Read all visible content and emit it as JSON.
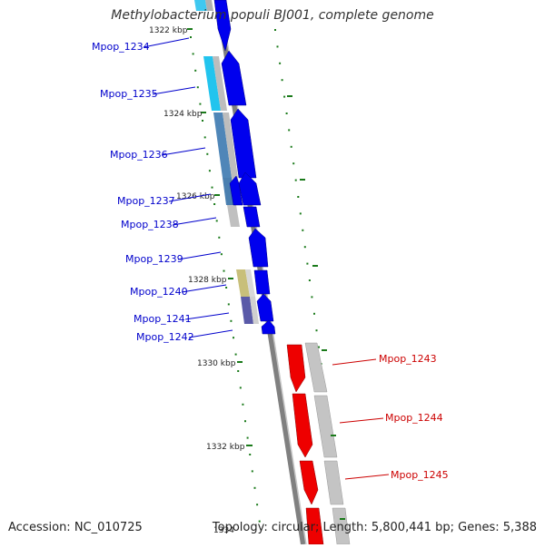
{
  "title": "Methylobacterium populi BJ001, complete genome",
  "accession": "Accession: NC_010725",
  "summary": "Topology: circular; Length: 5,800,441 bp; Genes: 5,388",
  "colors": {
    "backbone": "#808080",
    "minus_gene": "#0000ee",
    "plus_gene": "#ee0000",
    "minus_label": "#0000cc",
    "plus_label": "#cc0000",
    "tick": "#1a7a1a",
    "cds_gray": "#c0c0c0"
  },
  "ticks": [
    {
      "label": "1322 kbp"
    },
    {
      "label": "1324 kbp"
    },
    {
      "label": "1326 kbp"
    },
    {
      "label": "1328 kbp"
    },
    {
      "label": "1330 kbp"
    },
    {
      "label": "1332 kbp"
    },
    {
      "label": "1334"
    }
  ],
  "genes": [
    {
      "name": "Mpop_1234",
      "strand": "minus"
    },
    {
      "name": "Mpop_1235",
      "strand": "minus"
    },
    {
      "name": "Mpop_1236",
      "strand": "minus"
    },
    {
      "name": "Mpop_1237",
      "strand": "minus"
    },
    {
      "name": "Mpop_1238",
      "strand": "minus"
    },
    {
      "name": "Mpop_1239",
      "strand": "minus"
    },
    {
      "name": "Mpop_1240",
      "strand": "minus"
    },
    {
      "name": "Mpop_1241",
      "strand": "minus"
    },
    {
      "name": "Mpop_1242",
      "strand": "minus"
    },
    {
      "name": "Mpop_1243",
      "strand": "plus"
    },
    {
      "name": "Mpop_1244",
      "strand": "plus"
    },
    {
      "name": "Mpop_1245",
      "strand": "plus"
    }
  ]
}
